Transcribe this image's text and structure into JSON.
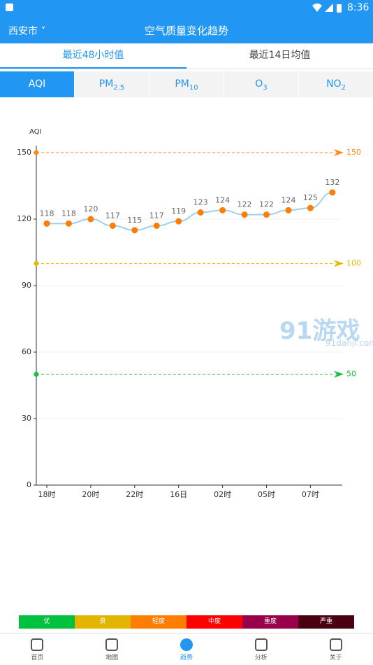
{
  "status_bar": {
    "time": "8:36"
  },
  "header": {
    "city": "西安市",
    "title": "空气质量变化趋势"
  },
  "tabs": [
    "最近48小时值",
    "最近14日均值"
  ],
  "pollutants": [
    {
      "main": "AQI",
      "sub": ""
    },
    {
      "main": "PM",
      "sub": "2.5"
    },
    {
      "main": "PM",
      "sub": "10"
    },
    {
      "main": "O",
      "sub": "3"
    },
    {
      "main": "NO",
      "sub": "2"
    }
  ],
  "chart_data": {
    "type": "line",
    "y_label": "AQI",
    "categories": [
      "18时",
      null,
      "20时",
      null,
      "22时",
      null,
      "16日",
      null,
      "02时",
      null,
      "05时",
      null,
      "07时",
      null
    ],
    "values": [
      118,
      118,
      120,
      117,
      115,
      117,
      119,
      123,
      124,
      122,
      122,
      124,
      125,
      132
    ],
    "line_color": "#9fcff0",
    "point_color": "#ff7e00",
    "ylim": [
      0,
      150
    ],
    "yticks": [
      0,
      30,
      60,
      90,
      120,
      150
    ],
    "grid": true,
    "reference_lines": [
      {
        "value": 150,
        "color": "#ff8c1a"
      },
      {
        "value": 100,
        "color": "#e8b800"
      },
      {
        "value": 50,
        "color": "#16c040"
      }
    ]
  },
  "levels": [
    {
      "label": "优",
      "color": "#00c13f"
    },
    {
      "label": "良",
      "color": "#e2b600"
    },
    {
      "label": "轻度",
      "color": "#ff7e00"
    },
    {
      "label": "中度",
      "color": "#ff0000"
    },
    {
      "label": "重度",
      "color": "#99004c"
    },
    {
      "label": "严重",
      "color": "#4b0012"
    }
  ],
  "nav": [
    "首页",
    "地图",
    "趋势",
    "分析",
    "关于"
  ],
  "watermark": {
    "brand": "91游戏",
    "url": "91danji.com"
  }
}
